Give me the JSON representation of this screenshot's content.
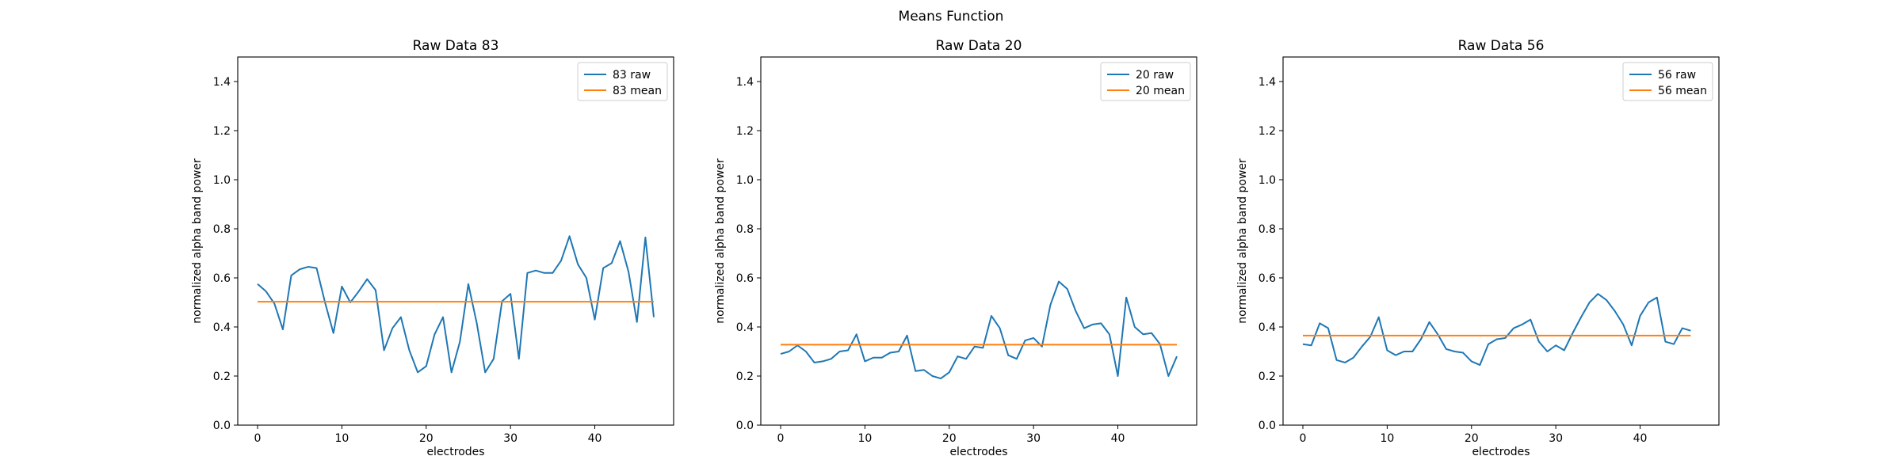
{
  "figure": {
    "suptitle": "Means Function",
    "colors": {
      "raw": "#1f77b4",
      "mean": "#ff7f0e"
    }
  },
  "chart_data": [
    {
      "type": "line",
      "title": "Raw Data 83",
      "xlabel": "electrodes",
      "ylabel": "normalized alpha band power",
      "xlim": [
        -2.35,
        49.35
      ],
      "ylim": [
        0,
        1.5
      ],
      "xticks": [
        0,
        10,
        20,
        30,
        40
      ],
      "yticks": [
        0.0,
        0.2,
        0.4,
        0.6,
        0.8,
        1.0,
        1.2,
        1.4
      ],
      "ytick_labels": [
        "0.0",
        "0.2",
        "0.4",
        "0.6",
        "0.8",
        "1.0",
        "1.2",
        "1.4"
      ],
      "grid": false,
      "legend": "upper-right",
      "series": [
        {
          "name": "83 raw",
          "color": "#1f77b4",
          "y": [
            0.575,
            0.545,
            0.495,
            0.39,
            0.61,
            0.635,
            0.645,
            0.64,
            0.5,
            0.375,
            0.565,
            0.5,
            0.545,
            0.595,
            0.55,
            0.305,
            0.395,
            0.44,
            0.305,
            0.215,
            0.24,
            0.37,
            0.44,
            0.215,
            0.34,
            0.575,
            0.415,
            0.215,
            0.27,
            0.505,
            0.535,
            0.27,
            0.62,
            0.63,
            0.62,
            0.62,
            0.67,
            0.77,
            0.655,
            0.6,
            0.43,
            0.64,
            0.66,
            0.75,
            0.625,
            0.42,
            0.765,
            0.44
          ]
        },
        {
          "name": "83 mean",
          "color": "#ff7f0e",
          "y": [
            0.503,
            0.503
          ],
          "x": [
            0,
            47
          ]
        }
      ]
    },
    {
      "type": "line",
      "title": "Raw Data 20",
      "xlabel": "electrodes",
      "ylabel": "normalized alpha band power",
      "xlim": [
        -2.35,
        49.35
      ],
      "ylim": [
        0,
        1.5
      ],
      "xticks": [
        0,
        10,
        20,
        30,
        40
      ],
      "yticks": [
        0.0,
        0.2,
        0.4,
        0.6,
        0.8,
        1.0,
        1.2,
        1.4
      ],
      "ytick_labels": [
        "0.0",
        "0.2",
        "0.4",
        "0.6",
        "0.8",
        "1.0",
        "1.2",
        "1.4"
      ],
      "grid": false,
      "legend": "upper-right",
      "series": [
        {
          "name": "20 raw",
          "color": "#1f77b4",
          "y": [
            0.29,
            0.3,
            0.325,
            0.3,
            0.255,
            0.26,
            0.27,
            0.3,
            0.305,
            0.37,
            0.26,
            0.275,
            0.275,
            0.295,
            0.3,
            0.365,
            0.22,
            0.225,
            0.2,
            0.19,
            0.215,
            0.28,
            0.27,
            0.32,
            0.315,
            0.445,
            0.395,
            0.285,
            0.27,
            0.345,
            0.355,
            0.32,
            0.49,
            0.585,
            0.555,
            0.465,
            0.395,
            0.41,
            0.415,
            0.37,
            0.2,
            0.52,
            0.4,
            0.37,
            0.375,
            0.33,
            0.2,
            0.28
          ]
        },
        {
          "name": "20 mean",
          "color": "#ff7f0e",
          "y": [
            0.328,
            0.328
          ],
          "x": [
            0,
            47
          ]
        }
      ]
    },
    {
      "type": "line",
      "title": "Raw Data 56",
      "xlabel": "electrodes",
      "ylabel": "normalized alpha band power",
      "xlim": [
        -2.35,
        49.35
      ],
      "ylim": [
        0,
        1.5
      ],
      "xticks": [
        0,
        10,
        20,
        30,
        40
      ],
      "yticks": [
        0.0,
        0.2,
        0.4,
        0.6,
        0.8,
        1.0,
        1.2,
        1.4
      ],
      "ytick_labels": [
        "0.0",
        "0.2",
        "0.4",
        "0.6",
        "0.8",
        "1.0",
        "1.2",
        "1.4"
      ],
      "grid": false,
      "legend": "upper-right",
      "series": [
        {
          "name": "56 raw",
          "color": "#1f77b4",
          "y": [
            0.33,
            0.325,
            0.415,
            0.395,
            0.265,
            0.255,
            0.275,
            0.32,
            0.36,
            0.44,
            0.305,
            0.285,
            0.3,
            0.3,
            0.35,
            0.42,
            0.37,
            0.31,
            0.3,
            0.295,
            0.26,
            0.245,
            0.33,
            0.35,
            0.355,
            0.395,
            0.41,
            0.43,
            0.34,
            0.3,
            0.325,
            0.305,
            0.375,
            0.44,
            0.5,
            0.535,
            0.51,
            0.465,
            0.41,
            0.325,
            0.445,
            0.5,
            0.52,
            0.34,
            0.33,
            0.395,
            0.385
          ]
        },
        {
          "name": "56 mean",
          "color": "#ff7f0e",
          "y": [
            0.365,
            0.365
          ],
          "x": [
            0,
            46
          ]
        }
      ]
    }
  ]
}
